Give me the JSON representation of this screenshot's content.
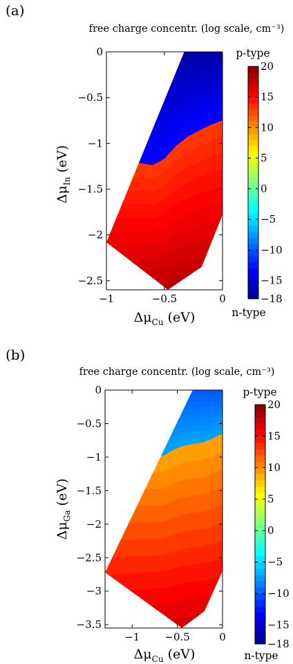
{
  "figure": {
    "panels": [
      {
        "panel_label": "(a)",
        "title": "free charge concentr. (log scale, cm⁻³)",
        "xlabel": "ΔμCu (eV)",
        "ylabel": "ΔμIn (eV)",
        "xlabel_main": "Δμ",
        "xlabel_sub": "Cu",
        "xlabel_unit": " (eV)",
        "ylabel_main": "Δμ",
        "ylabel_sub": "In",
        "ylabel_unit": " (eV)",
        "colorbar_top_note": "p-type",
        "colorbar_bottom_note": "n-type"
      },
      {
        "panel_label": "(b)",
        "title": "free charge concentr. (log scale, cm⁻³)",
        "xlabel": "ΔμCu (eV)",
        "ylabel": "ΔμGa (eV)",
        "xlabel_main": "Δμ",
        "xlabel_sub": "Cu",
        "xlabel_unit": " (eV)",
        "ylabel_main": "Δμ",
        "ylabel_sub": "Ga",
        "ylabel_unit": " (eV)",
        "colorbar_top_note": "p-type",
        "colorbar_bottom_note": "n-type"
      }
    ]
  },
  "chart_data": [
    {
      "type": "heatmap",
      "subtype": "filled-contour",
      "title": "free charge concentr. (log scale, cm⁻³)",
      "xlabel": "ΔμCu (eV)",
      "ylabel": "ΔμIn (eV)",
      "xlim": [
        -1,
        0
      ],
      "ylim": [
        -2.6,
        0
      ],
      "xticks": [
        -1,
        -0.5,
        0
      ],
      "xtick_labels": [
        "−1",
        "−0.5",
        "0"
      ],
      "yticks": [
        0,
        -0.5,
        -1,
        -1.5,
        -2,
        -2.5
      ],
      "ytick_labels": [
        "0",
        "−0.5",
        "−1",
        "−1.5",
        "−2",
        "−2.5"
      ],
      "colorbar": {
        "range": [
          -18,
          20
        ],
        "ticks": [
          20,
          15,
          10,
          5,
          0,
          -5,
          -10,
          -15,
          -18
        ],
        "tick_labels": [
          "20",
          "15",
          "10",
          "5",
          "0",
          "−5",
          "−10",
          "−15",
          "−18"
        ],
        "colormap": "jet",
        "top_note": "p-type",
        "bottom_note": "n-type"
      },
      "region": [
        [
          -0.33,
          0
        ],
        [
          0,
          0
        ],
        [
          0,
          -1.78
        ],
        [
          -0.18,
          -2.35
        ],
        [
          -0.47,
          -2.6
        ],
        [
          -1,
          -2.08
        ]
      ],
      "boundary": [
        [
          -0.7,
          -1.22
        ],
        [
          -0.6,
          -1.24
        ],
        [
          -0.5,
          -1.17
        ],
        [
          -0.4,
          -1.03
        ],
        [
          -0.3,
          -0.93
        ],
        [
          -0.2,
          -0.86
        ],
        [
          -0.1,
          -0.8
        ],
        [
          0,
          -0.75
        ]
      ],
      "n_region": {
        "value_top": -17,
        "value_at_boundary": -13
      },
      "p_region": {
        "value_at_boundary": 13,
        "value_bottom": 19
      },
      "grid": false
    },
    {
      "type": "heatmap",
      "subtype": "filled-contour",
      "title": "free charge concentr. (log scale, cm⁻³)",
      "xlabel": "ΔμCu (eV)",
      "ylabel": "ΔμGa (eV)",
      "xlim": [
        -1.3,
        0
      ],
      "ylim": [
        -3.55,
        0
      ],
      "xticks": [
        -1,
        -0.5,
        0
      ],
      "xtick_labels": [
        "−1",
        "−0.5",
        "0"
      ],
      "yticks": [
        0,
        -0.5,
        -1,
        -1.5,
        -2,
        -2.5,
        -3,
        -3.5
      ],
      "ytick_labels": [
        "0",
        "−0.5",
        "−1",
        "−1.5",
        "−2",
        "−2.5",
        "−3",
        "−3.5"
      ],
      "colorbar": {
        "range": [
          -18,
          20
        ],
        "ticks": [
          20,
          15,
          10,
          5,
          0,
          -5,
          -10,
          -15,
          -18
        ],
        "tick_labels": [
          "20",
          "15",
          "10",
          "5",
          "0",
          "−5",
          "−10",
          "−15",
          "−18"
        ],
        "colormap": "jet",
        "top_note": "p-type",
        "bottom_note": "n-type"
      },
      "region": [
        [
          -0.33,
          0
        ],
        [
          0,
          0
        ],
        [
          0,
          -2.7
        ],
        [
          -0.2,
          -3.3
        ],
        [
          -0.45,
          -3.55
        ],
        [
          -1.3,
          -2.72
        ]
      ],
      "boundary": [
        [
          -0.65,
          -0.98
        ],
        [
          -0.55,
          -0.9
        ],
        [
          -0.45,
          -0.84
        ],
        [
          -0.3,
          -0.8
        ],
        [
          -0.2,
          -0.78
        ],
        [
          -0.1,
          -0.72
        ],
        [
          0,
          -0.65
        ]
      ],
      "n_region": {
        "value_top": -10,
        "value_at_boundary": -7
      },
      "p_region": {
        "value_at_boundary": 9,
        "value_bottom": 18
      },
      "grid": false
    }
  ]
}
